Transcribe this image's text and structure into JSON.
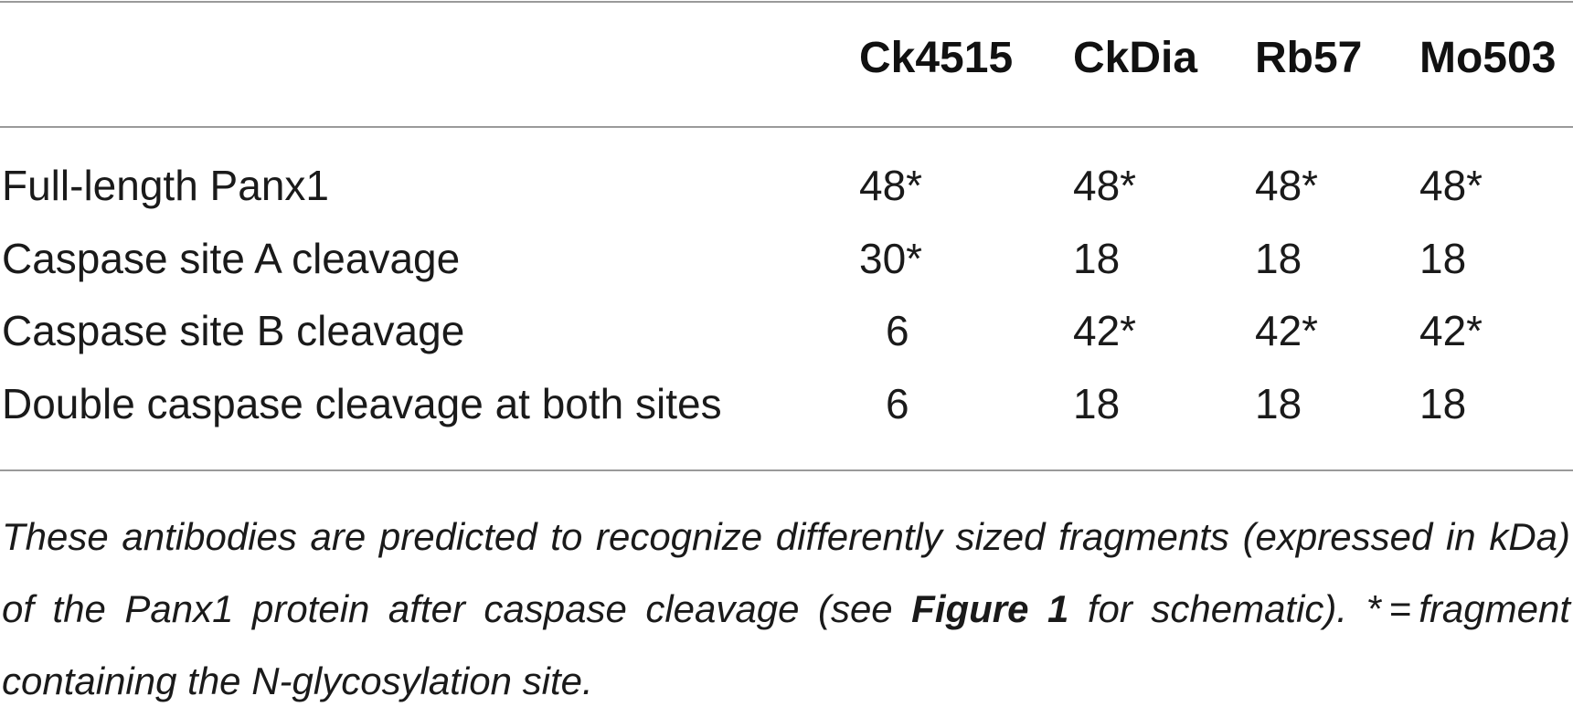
{
  "table": {
    "columns": [
      "Ck4515",
      "CkDia",
      "Rb57",
      "Mo503"
    ],
    "rows": [
      {
        "label": "Full-length Panx1",
        "values": [
          "48*",
          "48*",
          "48*",
          "48*"
        ]
      },
      {
        "label": "Caspase site A cleavage",
        "values": [
          "30*",
          "18",
          "18",
          "18"
        ]
      },
      {
        "label": "Caspase site B cleavage",
        "values": [
          "6",
          "42*",
          "42*",
          "42*"
        ]
      },
      {
        "label": "Double caspase cleavage at both sites",
        "values": [
          "6",
          "18",
          "18",
          "18"
        ]
      }
    ]
  },
  "footnote": {
    "part1": "These antibodies are predicted to recognize differently sized fragments (expressed in kDa) of the Panx1 protein after caspase cleavage (see ",
    "figure_ref": "Figure 1",
    "part2": " for schematic). * = fragment containing the N-glycosylation site."
  }
}
